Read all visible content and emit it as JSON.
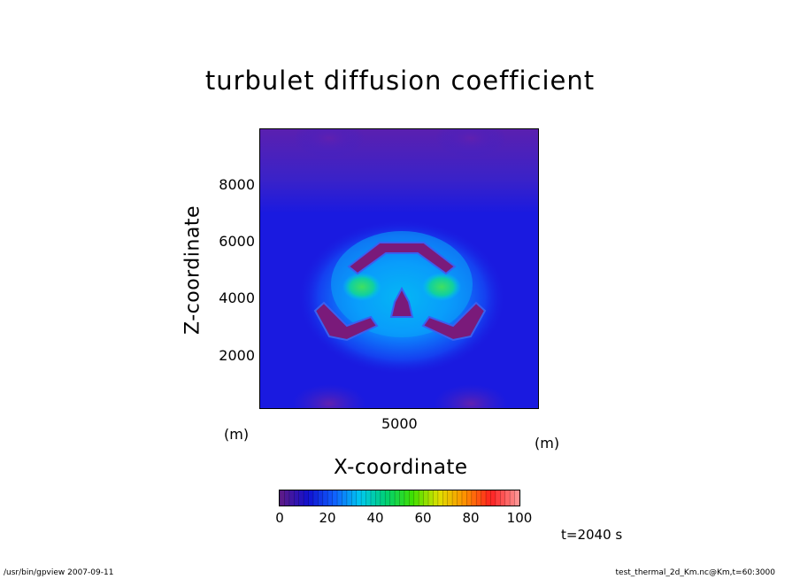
{
  "chart_data": {
    "type": "heatmap",
    "title": "turbulet diffusion coefficient",
    "xlabel": "X-coordinate",
    "ylabel": "Z-coordinate",
    "x_unit": "(m)",
    "x_unit_left": "(m)",
    "xlim": [
      0,
      10000
    ],
    "ylim": [
      0,
      10000
    ],
    "x_ticks": [
      5000
    ],
    "y_ticks": [
      2000,
      4000,
      6000,
      8000
    ],
    "colorbar": {
      "min": 0,
      "max": 100,
      "ticks": [
        0,
        20,
        40,
        60,
        80,
        100
      ],
      "colors": [
        "#5a1a8a",
        "#1010d0",
        "#1060ff",
        "#00c8f0",
        "#00d070",
        "#40e000",
        "#e0e000",
        "#ff9000",
        "#ff2020",
        "#ff9090"
      ]
    },
    "features": [
      {
        "label": "upper arch",
        "value_range": [
          0,
          5
        ]
      },
      {
        "label": "left lower lobe",
        "value_range": [
          0,
          5
        ]
      },
      {
        "label": "right lower lobe",
        "value_range": [
          0,
          5
        ]
      },
      {
        "label": "central cap",
        "value_range": [
          0,
          5
        ]
      },
      {
        "label": "left core",
        "value_range": [
          45,
          55
        ]
      },
      {
        "label": "right core",
        "value_range": [
          45,
          55
        ]
      }
    ]
  },
  "time_label": "t=2040 s",
  "footer": {
    "left": "/usr/bin/gpview   2007-09-11",
    "right": "test_thermal_2d_Km.nc@Km,t=60:3000"
  }
}
